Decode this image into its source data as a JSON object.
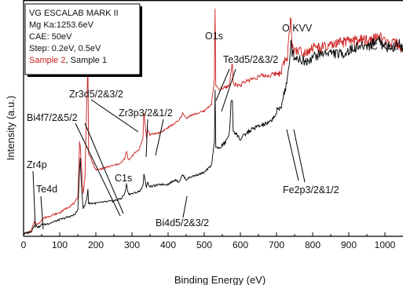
{
  "chart_data": {
    "type": "line",
    "title": "",
    "xlabel": "Binding Energy (eV)",
    "ylabel": "Intensity (a.u.)",
    "xlim": [
      0,
      1050
    ],
    "ylim": [
      0,
      100
    ],
    "xticks": [
      0,
      100,
      200,
      300,
      400,
      500,
      600,
      700,
      800,
      900,
      1000
    ],
    "y_tick_labels_shown": false,
    "grid": false,
    "legend_position": "top-left",
    "legend_lines": [
      "VG ESCALAB MARK II",
      "Mg Ka:1253.6eV",
      "CAE: 50eV",
      "Step: 0.2eV, 0.5eV"
    ],
    "legend_series_line": {
      "sample2": "Sample 2",
      "separator": ", ",
      "sample1": "Sample 1"
    },
    "colors": {
      "sample1": "#000000",
      "sample2": "#cc1f1f",
      "axis": "#000000"
    },
    "series": [
      {
        "name": "Sample 1",
        "color": "#000000",
        "x": [
          0,
          20,
          25,
          30,
          40,
          45,
          50,
          60,
          100,
          140,
          150,
          155,
          157,
          160,
          165,
          170,
          175,
          178,
          180,
          200,
          250,
          270,
          280,
          285,
          290,
          300,
          320,
          330,
          333,
          340,
          343,
          350,
          380,
          400,
          420,
          430,
          440,
          450,
          460,
          500,
          520,
          528,
          530,
          532,
          540,
          560,
          570,
          574,
          578,
          580,
          590,
          600,
          620,
          640,
          660,
          680,
          700,
          712,
          720,
          730,
          737,
          740,
          743,
          750,
          780,
          800,
          840,
          880,
          920,
          960,
          985,
          995,
          1000,
          1010,
          1020,
          1040,
          1050
        ],
        "y": [
          1,
          2,
          3,
          5,
          4,
          4,
          5,
          5,
          7,
          9,
          11,
          28,
          33,
          22,
          12,
          13,
          16,
          20,
          14,
          14,
          15,
          16,
          18,
          22,
          18,
          18,
          19,
          21,
          26,
          21,
          23,
          21,
          22,
          22,
          24,
          23,
          26,
          24,
          25,
          27,
          30,
          40,
          62,
          38,
          37,
          40,
          44,
          56,
          58,
          45,
          43,
          41,
          44,
          46,
          47,
          48,
          52,
          55,
          60,
          66,
          74,
          85,
          78,
          76,
          74,
          76,
          78,
          77,
          80,
          81,
          84,
          80,
          82,
          79,
          80,
          82,
          78
        ]
      },
      {
        "name": "Sample 2",
        "color": "#cc1f1f",
        "x": [
          0,
          20,
          25,
          30,
          40,
          45,
          50,
          60,
          100,
          140,
          150,
          155,
          157,
          160,
          165,
          170,
          175,
          178,
          180,
          200,
          250,
          270,
          280,
          285,
          290,
          300,
          320,
          330,
          333,
          340,
          343,
          350,
          380,
          400,
          420,
          430,
          440,
          450,
          460,
          500,
          520,
          528,
          530,
          532,
          540,
          560,
          570,
          574,
          578,
          580,
          590,
          600,
          620,
          640,
          660,
          680,
          700,
          712,
          720,
          730,
          737,
          740,
          743,
          750,
          780,
          800,
          840,
          880,
          920,
          960,
          985,
          995,
          1000,
          1010,
          1020,
          1040,
          1050
        ],
        "y": [
          1,
          2,
          4,
          6,
          5,
          6,
          7,
          8,
          10,
          14,
          16,
          40,
          38,
          30,
          18,
          25,
          58,
          72,
          35,
          28,
          30,
          31,
          33,
          36,
          32,
          34,
          37,
          41,
          52,
          42,
          45,
          43,
          44,
          46,
          48,
          49,
          52,
          50,
          51,
          53,
          56,
          66,
          96,
          64,
          62,
          63,
          64,
          70,
          73,
          65,
          64,
          64,
          66,
          67,
          68,
          68,
          69,
          70,
          73,
          76,
          88,
          94,
          80,
          79,
          78,
          80,
          80,
          82,
          83,
          83,
          85,
          82,
          84,
          80,
          82,
          81,
          78
        ]
      }
    ],
    "annotations": [
      {
        "id": "o1s",
        "text": "O1s"
      },
      {
        "id": "okvv",
        "text": "O KVV"
      },
      {
        "id": "ckll",
        "text": "C KLL"
      },
      {
        "id": "te3d",
        "text": "Te3d5/2&3/2"
      },
      {
        "id": "zr3d",
        "text": "Zr3d5/2&3/2"
      },
      {
        "id": "bi4f",
        "text": "Bi4f7/2&5/2"
      },
      {
        "id": "zr3p",
        "text": "Zr3p3/2&1/2"
      },
      {
        "id": "c1s",
        "text": "C1s"
      },
      {
        "id": "zr4p",
        "text": "Zr4p"
      },
      {
        "id": "te4d",
        "text": "Te4d"
      },
      {
        "id": "bi4d",
        "text": "Bi4d5/2&3/2"
      },
      {
        "id": "fe2p",
        "text": "Fe2p3/2&1/2"
      }
    ]
  }
}
